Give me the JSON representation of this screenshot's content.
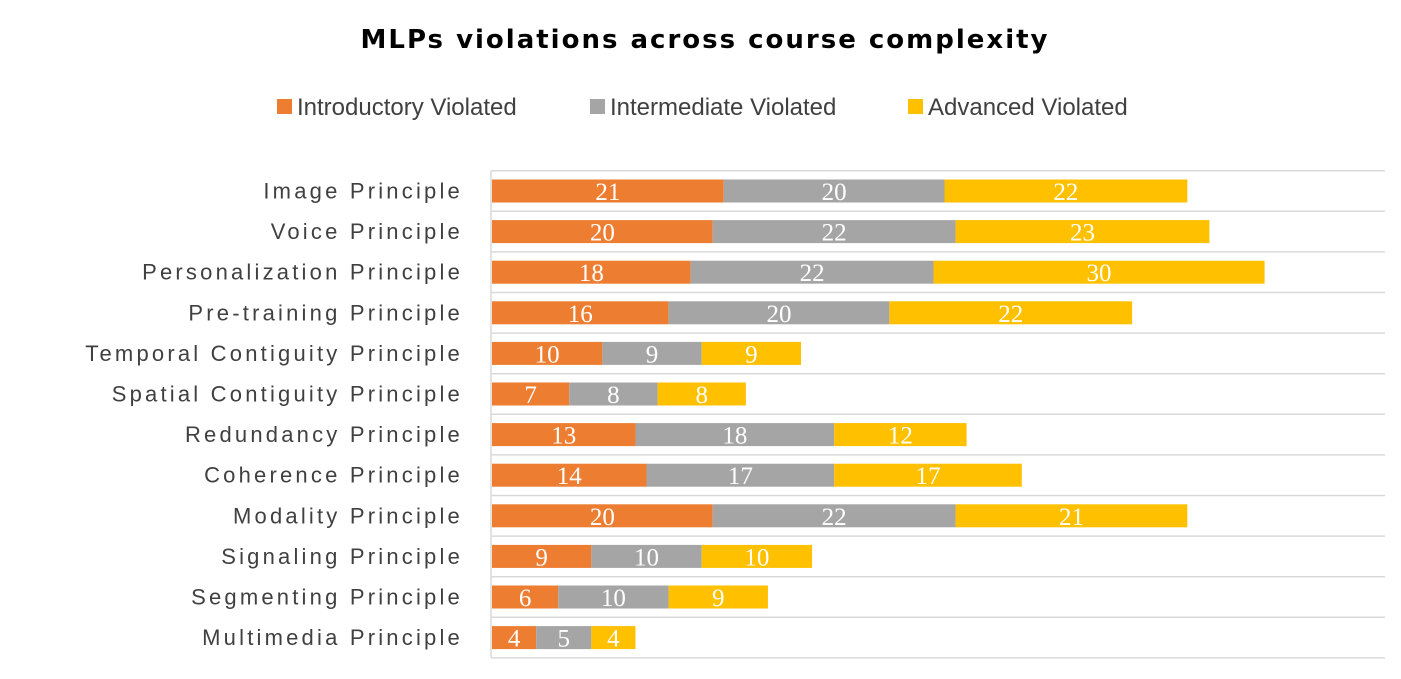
{
  "chart_data": {
    "type": "bar",
    "orientation": "horizontal",
    "stacked": true,
    "title": "MLPs violations across course complexity",
    "xlabel": "",
    "ylabel": "",
    "legend_position": "top",
    "grid": true,
    "xlim": [
      0,
      81
    ],
    "categories": [
      "Image Principle",
      "Voice Principle",
      "Personalization Principle",
      "Pre-training Principle",
      "Temporal Contiguity Principle",
      "Spatial Contiguity Principle",
      "Redundancy Principle",
      "Coherence Principle",
      "Modality Principle",
      "Signaling Principle",
      "Segmenting Principle",
      "Multimedia Principle"
    ],
    "series": [
      {
        "name": "Introductory Violated",
        "color": "#ED7D31",
        "values": [
          21,
          20,
          18,
          16,
          10,
          7,
          13,
          14,
          20,
          9,
          6,
          4
        ]
      },
      {
        "name": "Intermediate Violated",
        "color": "#A5A5A5",
        "values": [
          20,
          22,
          22,
          20,
          9,
          8,
          18,
          17,
          22,
          10,
          10,
          5
        ]
      },
      {
        "name": "Advanced Violated",
        "color": "#FFC000",
        "values": [
          22,
          23,
          30,
          22,
          9,
          8,
          12,
          17,
          21,
          10,
          9,
          4
        ]
      }
    ]
  }
}
